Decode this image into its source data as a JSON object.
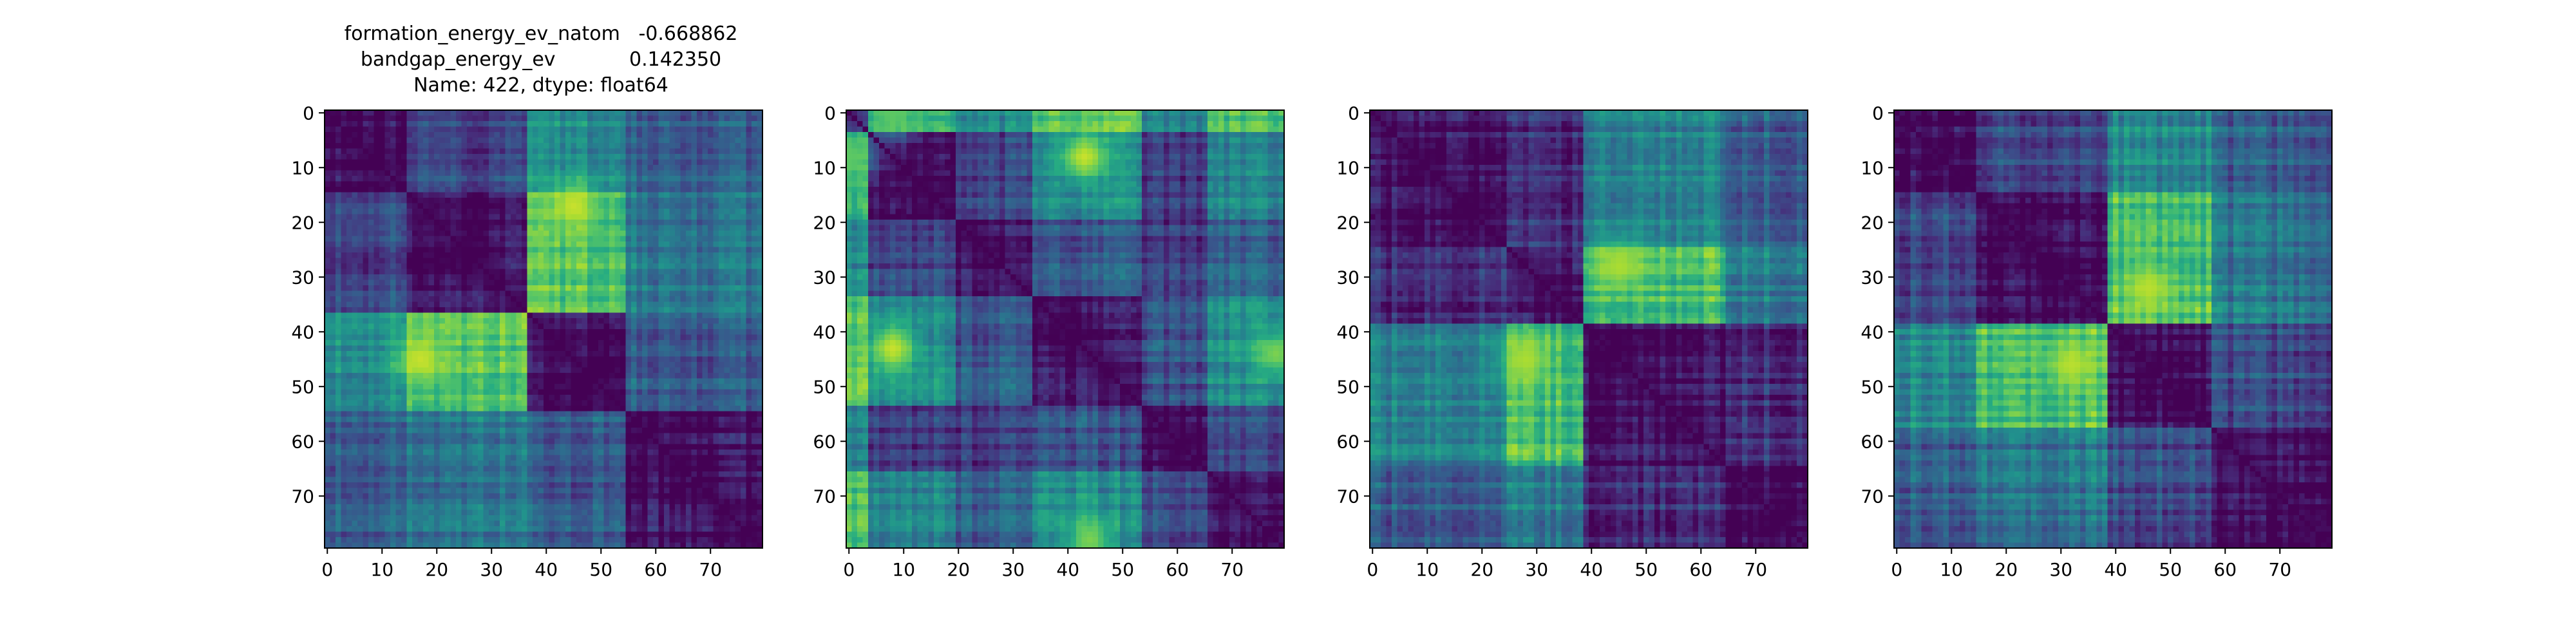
{
  "chart_data": [
    {
      "type": "heatmap",
      "title_lines": [
        "formation_energy_ev_natom   -0.668862",
        "bandgap_energy_ev            0.142350",
        "Name: 422, dtype: float64"
      ],
      "matrix_size": 80,
      "xlim": [
        0,
        79
      ],
      "ylim": [
        79,
        0
      ],
      "x_ticks": [
        0,
        10,
        20,
        30,
        40,
        50,
        60,
        70
      ],
      "y_ticks": [
        0,
        10,
        20,
        30,
        40,
        50,
        60,
        70
      ],
      "x_tick_labels": [
        "0",
        "10",
        "20",
        "30",
        "40",
        "50",
        "60",
        "70"
      ],
      "y_tick_labels": [
        "0",
        "10",
        "20",
        "30",
        "40",
        "50",
        "60",
        "70"
      ],
      "colormap": "viridis",
      "value_range": [
        0,
        1
      ],
      "grid": false,
      "structure": {
        "diagonal_value": 0,
        "block_edges": [
          0,
          15,
          37,
          55,
          80
        ],
        "block_pair_values": [
          [
            0.05,
            0.22,
            0.5,
            0.32
          ],
          [
            0.22,
            0.05,
            0.72,
            0.4
          ],
          [
            0.5,
            0.72,
            0.05,
            0.3
          ],
          [
            0.32,
            0.4,
            0.3,
            0.05
          ]
        ],
        "hot_spots": [
          {
            "row": 17,
            "col": 45,
            "value": 0.92
          },
          {
            "row": 45,
            "col": 17,
            "value": 0.92
          }
        ]
      }
    },
    {
      "type": "heatmap",
      "title_lines": [],
      "matrix_size": 80,
      "xlim": [
        0,
        79
      ],
      "ylim": [
        79,
        0
      ],
      "x_ticks": [
        0,
        10,
        20,
        30,
        40,
        50,
        60,
        70
      ],
      "y_ticks": [
        0,
        10,
        20,
        30,
        40,
        50,
        60,
        70
      ],
      "x_tick_labels": [
        "0",
        "10",
        "20",
        "30",
        "40",
        "50",
        "60",
        "70"
      ],
      "y_tick_labels": [
        "0",
        "10",
        "20",
        "30",
        "40",
        "50",
        "60",
        "70"
      ],
      "colormap": "viridis",
      "value_range": [
        0,
        1
      ],
      "grid": false,
      "structure": {
        "diagonal_value": 0,
        "block_edges": [
          0,
          4,
          20,
          34,
          54,
          66,
          80
        ],
        "block_pair_values": [
          [
            0.05,
            0.62,
            0.45,
            0.72,
            0.42,
            0.68
          ],
          [
            0.62,
            0.05,
            0.22,
            0.5,
            0.2,
            0.45
          ],
          [
            0.45,
            0.22,
            0.05,
            0.28,
            0.18,
            0.3
          ],
          [
            0.72,
            0.5,
            0.28,
            0.05,
            0.26,
            0.48
          ],
          [
            0.42,
            0.2,
            0.18,
            0.26,
            0.05,
            0.24
          ],
          [
            0.68,
            0.45,
            0.3,
            0.48,
            0.24,
            0.05
          ]
        ],
        "hot_spots": [
          {
            "row": 8,
            "col": 43,
            "value": 0.92
          },
          {
            "row": 43,
            "col": 8,
            "value": 0.92
          },
          {
            "row": 44,
            "col": 78,
            "value": 0.8
          },
          {
            "row": 78,
            "col": 44,
            "value": 0.8
          },
          {
            "row": 0,
            "col": 8,
            "value": 0.75
          },
          {
            "row": 8,
            "col": 0,
            "value": 0.75
          }
        ]
      }
    },
    {
      "type": "heatmap",
      "title_lines": [],
      "matrix_size": 80,
      "xlim": [
        0,
        79
      ],
      "ylim": [
        79,
        0
      ],
      "x_ticks": [
        0,
        10,
        20,
        30,
        40,
        50,
        60,
        70
      ],
      "y_ticks": [
        0,
        10,
        20,
        30,
        40,
        50,
        60,
        70
      ],
      "x_tick_labels": [
        "0",
        "10",
        "20",
        "30",
        "40",
        "50",
        "60",
        "70"
      ],
      "y_tick_labels": [
        "0",
        "10",
        "20",
        "30",
        "40",
        "50",
        "60",
        "70"
      ],
      "colormap": "viridis",
      "value_range": [
        0,
        1
      ],
      "grid": false,
      "structure": {
        "diagonal_value": 0,
        "block_edges": [
          0,
          25,
          39,
          65,
          80
        ],
        "block_pair_values": [
          [
            0.06,
            0.12,
            0.45,
            0.3
          ],
          [
            0.12,
            0.06,
            0.7,
            0.42
          ],
          [
            0.45,
            0.7,
            0.06,
            0.14
          ],
          [
            0.3,
            0.42,
            0.14,
            0.08
          ]
        ],
        "hot_spots": [
          {
            "row": 28,
            "col": 45,
            "value": 0.88
          },
          {
            "row": 45,
            "col": 28,
            "value": 0.88
          }
        ]
      }
    },
    {
      "type": "heatmap",
      "title_lines": [],
      "matrix_size": 80,
      "xlim": [
        0,
        79
      ],
      "ylim": [
        79,
        0
      ],
      "x_ticks": [
        0,
        10,
        20,
        30,
        40,
        50,
        60,
        70
      ],
      "y_ticks": [
        0,
        10,
        20,
        30,
        40,
        50,
        60,
        70
      ],
      "x_tick_labels": [
        "0",
        "10",
        "20",
        "30",
        "40",
        "50",
        "60",
        "70"
      ],
      "y_tick_labels": [
        "0",
        "10",
        "20",
        "30",
        "40",
        "50",
        "60",
        "70"
      ],
      "colormap": "viridis",
      "value_range": [
        0,
        1
      ],
      "grid": false,
      "structure": {
        "diagonal_value": 0,
        "block_edges": [
          0,
          15,
          39,
          58,
          80
        ],
        "block_pair_values": [
          [
            0.05,
            0.22,
            0.48,
            0.3
          ],
          [
            0.22,
            0.05,
            0.72,
            0.4
          ],
          [
            0.48,
            0.72,
            0.05,
            0.24
          ],
          [
            0.3,
            0.4,
            0.24,
            0.06
          ]
        ],
        "hot_spots": [
          {
            "row": 32,
            "col": 46,
            "value": 0.9
          },
          {
            "row": 46,
            "col": 32,
            "value": 0.9
          }
        ]
      }
    }
  ]
}
